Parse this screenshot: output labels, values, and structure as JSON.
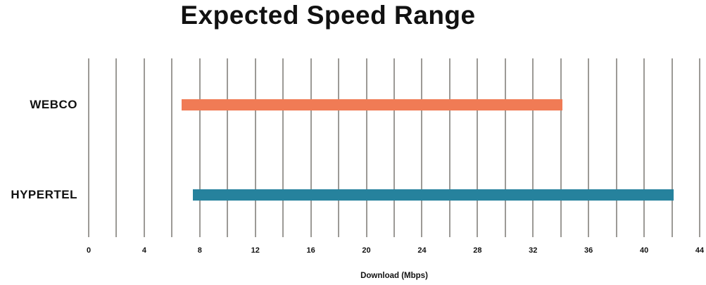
{
  "chart_data": {
    "type": "bar",
    "subtype": "horizontal-range-bars",
    "title": "Expected Speed Range",
    "categories": [
      "WEBCO",
      "HYPERTEL"
    ],
    "series": [
      {
        "name": "WEBCO",
        "start": 6.7,
        "end": 34.1,
        "color": "#f07b55"
      },
      {
        "name": "HYPERTEL",
        "start": 7.5,
        "end": 42.1,
        "color": "#26829d"
      }
    ],
    "unit": "Mbps",
    "xlabel": "Download (Mbps)",
    "xlim": [
      0,
      44
    ],
    "x_tick_labels": [
      "0",
      "4",
      "8",
      "12",
      "16",
      "20",
      "24",
      "28",
      "32",
      "36",
      "40",
      "44"
    ],
    "x_major_tick_step": 4,
    "gridline_step": 2,
    "grid": true,
    "legend_position": "none",
    "colors": {
      "background": "#ffffff",
      "gridline": "#9c9a96",
      "text": "#111111"
    }
  }
}
